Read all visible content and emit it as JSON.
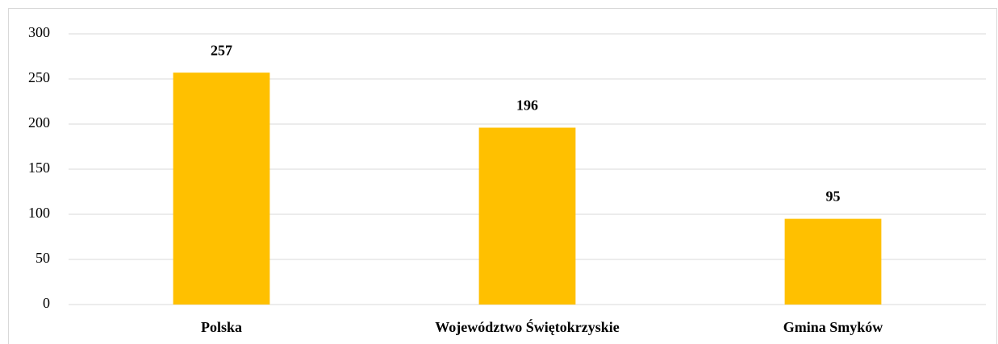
{
  "chart_data": {
    "type": "bar",
    "categories": [
      "Polska",
      "Województwo Świętokrzyskie",
      "Gmina Smyków"
    ],
    "values": [
      257,
      196,
      95
    ],
    "color": "#ffc000",
    "ylim": [
      0,
      300
    ],
    "yticks": [
      0,
      50,
      100,
      150,
      200,
      250,
      300
    ],
    "grid": true
  }
}
